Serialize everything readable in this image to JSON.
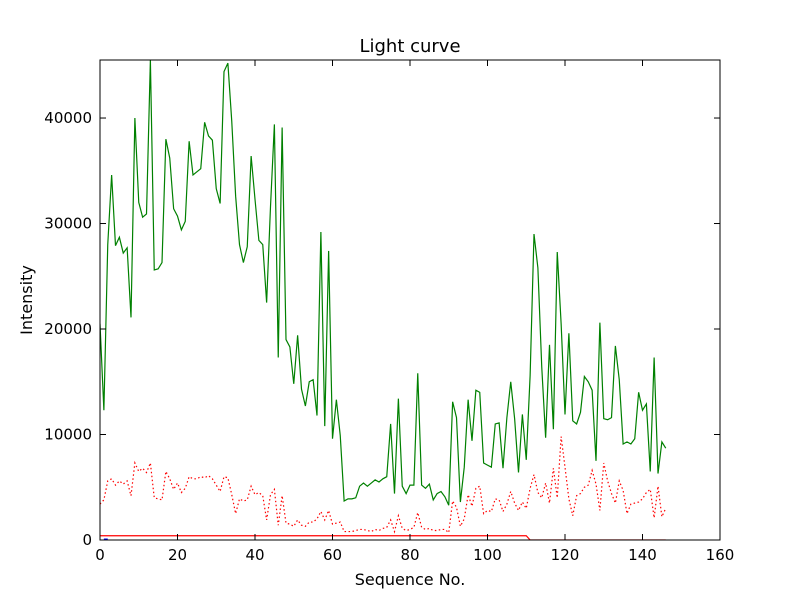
{
  "chart_data": {
    "type": "line",
    "title": "Light curve",
    "xlabel": "Sequence No.",
    "ylabel": "Intensity",
    "xlim": [
      0,
      160
    ],
    "ylim": [
      0,
      45500
    ],
    "xticks": [
      0,
      20,
      40,
      60,
      80,
      100,
      120,
      140,
      160
    ],
    "yticks": [
      0,
      10000,
      20000,
      30000,
      40000
    ],
    "grid": false,
    "colors": {
      "green": "#008000",
      "red": "#ff0000",
      "blue": "#0000ff",
      "axes": "#000000",
      "background": "#ffffff"
    },
    "series": [
      {
        "style": "solid",
        "color": "#008000",
        "x": [
          0,
          1,
          2,
          3,
          4,
          5,
          6,
          7,
          8,
          9,
          10,
          11,
          12,
          13,
          14,
          15,
          16,
          17,
          18,
          19,
          20,
          21,
          22,
          23,
          24,
          25,
          26,
          27,
          28,
          29,
          30,
          31,
          32,
          33,
          34,
          35,
          36,
          37,
          38,
          39,
          40,
          41,
          42,
          43,
          44,
          45,
          46,
          47,
          48,
          49,
          50,
          51,
          52,
          53,
          54,
          55,
          56,
          57,
          58,
          59,
          60,
          61,
          62,
          63,
          64,
          65,
          66,
          67,
          68,
          69,
          70,
          71,
          72,
          73,
          74,
          75,
          76,
          77,
          78,
          79,
          80,
          81,
          82,
          83,
          84,
          85,
          86,
          87,
          88,
          89,
          90,
          91,
          92,
          93,
          94,
          95,
          96,
          97,
          98,
          99,
          100,
          101,
          102,
          103,
          104,
          105,
          106,
          107,
          108,
          109,
          110,
          111,
          112,
          113,
          114,
          115,
          116,
          117,
          118,
          119,
          120,
          121,
          122,
          123,
          124,
          125,
          126,
          127,
          128,
          129,
          130,
          131,
          132,
          133,
          134,
          135,
          136,
          137,
          138,
          139,
          140,
          141,
          142,
          143,
          144,
          145,
          146
        ],
        "y": [
          20500,
          12300,
          28000,
          34600,
          27900,
          28700,
          27200,
          27700,
          21100,
          40000,
          32000,
          30600,
          30900,
          45500,
          25600,
          25700,
          26300,
          38000,
          36200,
          31400,
          30700,
          29400,
          30200,
          37800,
          34600,
          34900,
          35200,
          39600,
          38300,
          37900,
          33300,
          31900,
          44400,
          45200,
          39700,
          32600,
          28000,
          26300,
          27800,
          36400,
          32300,
          28400,
          28000,
          22500,
          31600,
          39400,
          17300,
          39100,
          19000,
          18300,
          14800,
          19400,
          14300,
          12700,
          15000,
          15200,
          11800,
          29200,
          10800,
          27400,
          9600,
          13300,
          9900,
          3700,
          3900,
          3900,
          4000,
          5100,
          5400,
          5100,
          5400,
          5700,
          5500,
          5800,
          6000,
          11000,
          4400,
          13400,
          5100,
          4400,
          5200,
          5200,
          15800,
          5200,
          4900,
          5300,
          3800,
          4400,
          4600,
          4100,
          3300,
          13100,
          11600,
          3600,
          6900,
          13300,
          9400,
          14200,
          14000,
          7300,
          7100,
          6900,
          11000,
          11100,
          6800,
          11600,
          15000,
          11500,
          6400,
          11900,
          7600,
          15600,
          29000,
          25800,
          16400,
          9700,
          18500,
          10500,
          27300,
          20500,
          11900,
          19600,
          11300,
          11000,
          12100,
          15500,
          15000,
          14200,
          7500,
          20600,
          11500,
          11400,
          11600,
          18400,
          15200,
          9100,
          9300,
          9100,
          9600,
          14000,
          12300,
          12900,
          6500,
          17300,
          6300,
          9300,
          8700
        ]
      },
      {
        "style": "dotted",
        "color": "#ff0000",
        "x": [
          0,
          1,
          2,
          3,
          4,
          5,
          6,
          7,
          8,
          9,
          10,
          11,
          12,
          13,
          14,
          15,
          16,
          17,
          18,
          19,
          20,
          21,
          22,
          23,
          24,
          25,
          26,
          27,
          28,
          29,
          30,
          31,
          32,
          33,
          34,
          35,
          36,
          37,
          38,
          39,
          40,
          41,
          42,
          43,
          44,
          45,
          46,
          47,
          48,
          49,
          50,
          51,
          52,
          53,
          54,
          55,
          56,
          57,
          58,
          59,
          60,
          61,
          62,
          63,
          64,
          65,
          66,
          67,
          68,
          69,
          70,
          71,
          72,
          73,
          74,
          75,
          76,
          77,
          78,
          79,
          80,
          81,
          82,
          83,
          84,
          85,
          86,
          87,
          88,
          89,
          90,
          91,
          92,
          93,
          94,
          95,
          96,
          97,
          98,
          99,
          100,
          101,
          102,
          103,
          104,
          105,
          106,
          107,
          108,
          109,
          110,
          111,
          112,
          113,
          114,
          115,
          116,
          117,
          118,
          119,
          120,
          121,
          122,
          123,
          124,
          125,
          126,
          127,
          128,
          129,
          130,
          131,
          132,
          133,
          134,
          135,
          136,
          137,
          138,
          139,
          140,
          141,
          142,
          143,
          144,
          145,
          146
        ],
        "y": [
          3400,
          3800,
          5600,
          5800,
          5200,
          5600,
          5300,
          5600,
          4200,
          7300,
          6500,
          6800,
          6400,
          7300,
          4000,
          3900,
          3800,
          6500,
          5800,
          4800,
          5400,
          4500,
          4900,
          6000,
          5800,
          5800,
          6000,
          5900,
          6100,
          5800,
          5200,
          4600,
          6000,
          5900,
          4300,
          2500,
          3900,
          3700,
          3800,
          5100,
          4300,
          4500,
          4200,
          1900,
          4300,
          4800,
          1400,
          4200,
          1600,
          1500,
          1300,
          1900,
          1400,
          1300,
          1700,
          1700,
          2000,
          2700,
          1900,
          2800,
          1500,
          1600,
          1700,
          800,
          800,
          800,
          900,
          1000,
          1000,
          900,
          800,
          1000,
          900,
          1100,
          1200,
          1900,
          800,
          2300,
          1100,
          900,
          1000,
          1200,
          2600,
          1200,
          1000,
          1100,
          900,
          900,
          1000,
          1000,
          700,
          3700,
          3100,
          1300,
          2000,
          4300,
          3200,
          4900,
          5100,
          2500,
          2800,
          2700,
          3900,
          3800,
          2700,
          3400,
          4600,
          3500,
          2800,
          3600,
          3000,
          4900,
          6200,
          4500,
          4000,
          5400,
          3500,
          6800,
          4000,
          9800,
          6900,
          3900,
          2300,
          4200,
          4400,
          5000,
          5200,
          6600,
          5300,
          2800,
          7300,
          5600,
          4400,
          3500,
          5600,
          4700,
          2500,
          3400,
          3500,
          3600,
          3900,
          4500,
          4800,
          2100,
          5100,
          2200,
          3000
        ]
      },
      {
        "style": "solid",
        "color": "#ff0000",
        "x": [
          0,
          110,
          111,
          146
        ],
        "y": [
          400,
          400,
          0,
          0
        ]
      },
      {
        "style": "solid",
        "color": "#0000ff",
        "x": [
          1,
          2
        ],
        "y": [
          0,
          0
        ]
      }
    ]
  }
}
